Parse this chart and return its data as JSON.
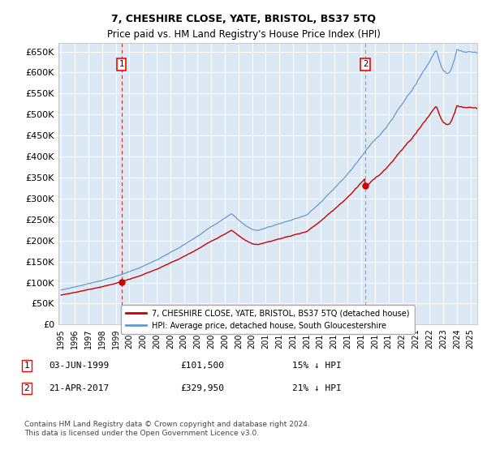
{
  "title": "7, CHESHIRE CLOSE, YATE, BRISTOL, BS37 5TQ",
  "subtitle": "Price paid vs. HM Land Registry's House Price Index (HPI)",
  "ylabel_ticks": [
    "£0",
    "£50K",
    "£100K",
    "£150K",
    "£200K",
    "£250K",
    "£300K",
    "£350K",
    "£400K",
    "£450K",
    "£500K",
    "£550K",
    "£600K",
    "£650K"
  ],
  "ylim": [
    0,
    670000
  ],
  "ytick_vals": [
    0,
    50000,
    100000,
    150000,
    200000,
    250000,
    300000,
    350000,
    400000,
    450000,
    500000,
    550000,
    600000,
    650000
  ],
  "plot_bg_color": "#dde8f5",
  "hpi_color": "#6699cc",
  "price_color": "#cc0000",
  "marker1_x": 1999.42,
  "marker1_y": 101500,
  "marker2_x": 2017.3,
  "marker2_y": 329950,
  "vline1_color": "#cc0000",
  "vline2_color": "#888888",
  "legend_line1": "7, CHESHIRE CLOSE, YATE, BRISTOL, BS37 5TQ (detached house)",
  "legend_line2": "HPI: Average price, detached house, South Gloucestershire",
  "footer": "Contains HM Land Registry data © Crown copyright and database right 2024.\nThis data is licensed under the Open Government Licence v3.0.",
  "xmin": 1994.8,
  "xmax": 2025.5,
  "xticks": [
    1995,
    1996,
    1997,
    1998,
    1999,
    2000,
    2001,
    2002,
    2003,
    2004,
    2005,
    2006,
    2007,
    2008,
    2009,
    2010,
    2011,
    2012,
    2013,
    2014,
    2015,
    2016,
    2017,
    2018,
    2019,
    2020,
    2021,
    2022,
    2023,
    2024,
    2025
  ]
}
